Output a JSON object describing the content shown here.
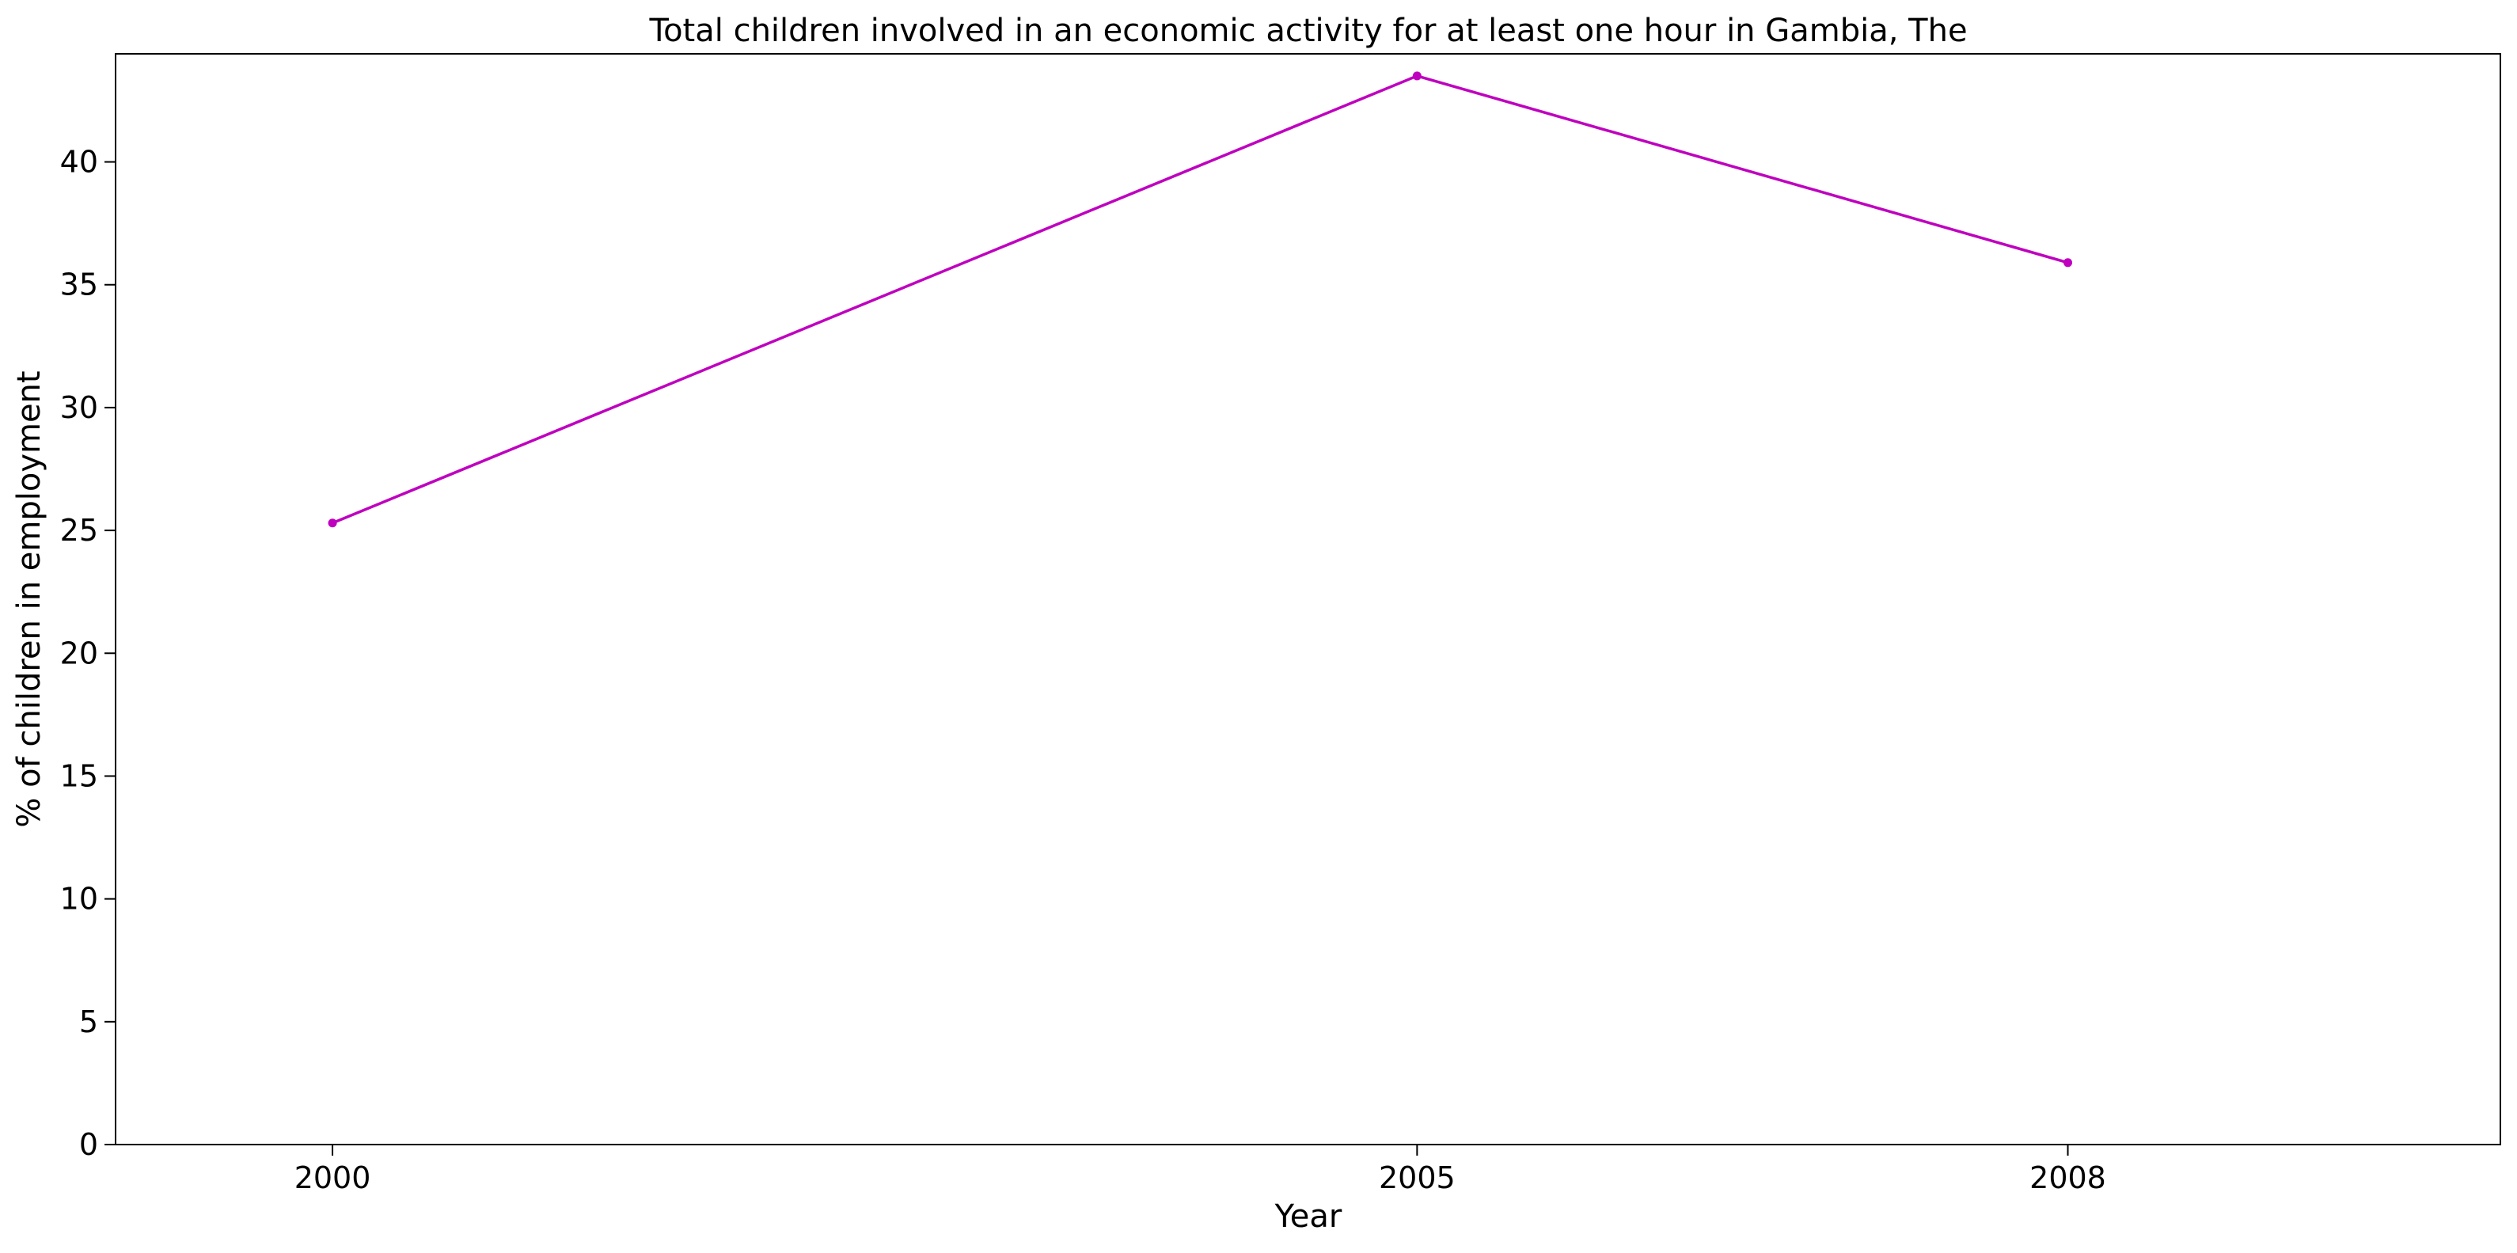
{
  "chart_data": {
    "type": "line",
    "title": "Total children involved in an economic activity for at least one hour in Gambia, The",
    "xlabel": "Year",
    "ylabel": "% of children in employment",
    "x": [
      2000,
      2005,
      2008
    ],
    "x_tick_labels": [
      "2000",
      "2005",
      "2008"
    ],
    "series": [
      {
        "values": [
          25.3,
          43.5,
          35.9
        ],
        "color": "#bf00bf",
        "marker": "circle"
      }
    ],
    "ylim": [
      0,
      44.4
    ],
    "y_ticks": [
      0,
      5,
      10,
      15,
      20,
      25,
      30,
      35,
      40
    ],
    "y_tick_labels": [
      "0",
      "5",
      "10",
      "15",
      "20",
      "25",
      "30",
      "35",
      "40"
    ],
    "grid": false,
    "legend": "none"
  }
}
